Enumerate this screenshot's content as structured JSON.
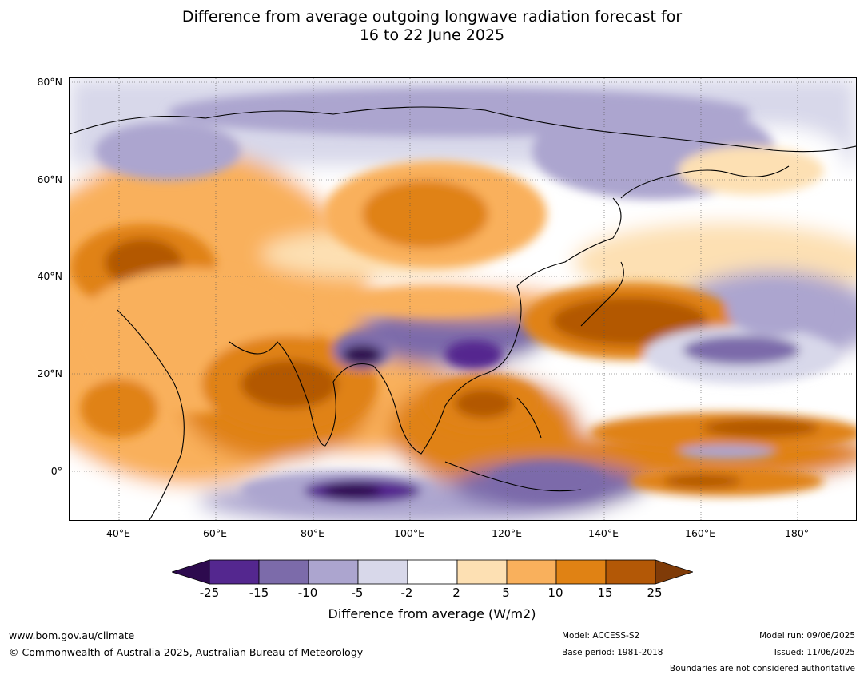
{
  "title_line1": "Difference from average outgoing longwave radiation forecast for",
  "title_line2": "16 to 22 June 2025",
  "lat_labels": [
    "80°N",
    "60°N",
    "40°N",
    "20°N",
    "0°"
  ],
  "lon_labels": [
    "40°E",
    "60°E",
    "80°E",
    "100°E",
    "120°E",
    "140°E",
    "160°E",
    "180°"
  ],
  "colorbar": {
    "ticks": [
      "-25",
      "-15",
      "-10",
      "-5",
      "-2",
      "2",
      "5",
      "10",
      "15",
      "25"
    ],
    "colors": [
      "#2d0a4e",
      "#54278f",
      "#7c6baa",
      "#aca5cf",
      "#d8d8ea",
      "#ffffff",
      "#fde0b3",
      "#f9b05c",
      "#e08214",
      "#b35806",
      "#7f3b08"
    ],
    "label": "Difference from average (W/m2)"
  },
  "footer": {
    "website": "www.bom.gov.au/climate",
    "copyright": "© Commonwealth of Australia 2025, Australian Bureau of Meteorology",
    "model": "Model: ACCESS-S2",
    "base_period": "Base period: 1981-2018",
    "model_run": "Model run: 09/06/2025",
    "issued": "Issued: 11/06/2025",
    "disclaimer": "Boundaries are not considered authoritative"
  },
  "anomaly_blobs": [
    {
      "lon": 110,
      "lat": 74,
      "rx": 60,
      "ry": 5,
      "level": 3
    },
    {
      "lon": 150,
      "lat": 66,
      "rx": 25,
      "ry": 10,
      "level": 3
    },
    {
      "lon": 50,
      "lat": 66,
      "rx": 15,
      "ry": 6,
      "level": 3
    },
    {
      "lon": 170,
      "lat": 62,
      "rx": 15,
      "ry": 5,
      "level": 6
    },
    {
      "lon": 105,
      "lat": 53,
      "rx": 23,
      "ry": 11,
      "level": 7
    },
    {
      "lon": 103,
      "lat": 53,
      "rx": 13,
      "ry": 7,
      "level": 8
    },
    {
      "lon": 45,
      "lat": 42,
      "rx": 15,
      "ry": 9,
      "level": 8
    },
    {
      "lon": 45,
      "lat": 43,
      "rx": 8,
      "ry": 5,
      "level": 9
    },
    {
      "lon": 55,
      "lat": 27,
      "rx": 25,
      "ry": 15,
      "level": 7
    },
    {
      "lon": 75,
      "lat": 18,
      "rx": 18,
      "ry": 10,
      "level": 8
    },
    {
      "lon": 75,
      "lat": 18,
      "rx": 10,
      "ry": 5,
      "level": 9
    },
    {
      "lon": 40,
      "lat": 13,
      "rx": 8,
      "ry": 6,
      "level": 8
    },
    {
      "lon": 103,
      "lat": 35,
      "rx": 18,
      "ry": 3,
      "level": 7
    },
    {
      "lon": 145,
      "lat": 31,
      "rx": 22,
      "ry": 8,
      "level": 8
    },
    {
      "lon": 145,
      "lat": 31,
      "rx": 16,
      "ry": 5,
      "level": 9
    },
    {
      "lon": 168,
      "lat": 24,
      "rx": 20,
      "ry": 6,
      "level": 4
    },
    {
      "lon": 168,
      "lat": 25,
      "rx": 12,
      "ry": 3,
      "level": 2
    },
    {
      "lon": 115,
      "lat": 14,
      "rx": 12,
      "ry": 6,
      "level": 8
    },
    {
      "lon": 115,
      "lat": 14,
      "rx": 6,
      "ry": 3,
      "level": 9
    },
    {
      "lon": 165,
      "lat": 8,
      "rx": 28,
      "ry": 4,
      "level": 8
    },
    {
      "lon": 172,
      "lat": 9,
      "rx": 12,
      "ry": 2,
      "level": 9
    },
    {
      "lon": 165,
      "lat": 4,
      "rx": 10,
      "ry": 1.5,
      "level": 3
    },
    {
      "lon": 165,
      "lat": -2,
      "rx": 20,
      "ry": 3,
      "level": 8
    },
    {
      "lon": 160,
      "lat": -2,
      "rx": 8,
      "ry": 1.5,
      "level": 9
    },
    {
      "lon": 90,
      "lat": 25,
      "rx": 6,
      "ry": 4,
      "level": 2
    },
    {
      "lon": 90,
      "lat": 24,
      "rx": 4,
      "ry": 2,
      "level": 0
    },
    {
      "lon": 113,
      "lat": 24,
      "rx": 6,
      "ry": 3,
      "level": 1
    },
    {
      "lon": 85,
      "lat": -4,
      "rx": 20,
      "ry": 4,
      "level": 3
    },
    {
      "lon": 90,
      "lat": -4,
      "rx": 12,
      "ry": 2.5,
      "level": 1
    },
    {
      "lon": 88,
      "lat": -4,
      "rx": 6,
      "ry": 1.5,
      "level": 0
    },
    {
      "lon": 128,
      "lat": -2,
      "rx": 12,
      "ry": 4,
      "level": 2
    },
    {
      "lon": 175,
      "lat": 33,
      "rx": 10,
      "ry": 5,
      "level": 3
    }
  ]
}
